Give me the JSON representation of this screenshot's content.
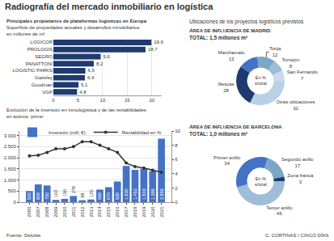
{
  "title": "Radiografía del mercado inmobiliario en logística",
  "annotations": [
    "Ubicaciones de los proyectos logísticos previstos",
    "C. CORTINAS / CINCO DÍAS"
  ],
  "chart_data": [
    {
      "type": "bar",
      "orientation": "horizontal",
      "title": "Principales propietarios de plataformas logísticas en Europa",
      "subtitle": "Superficie de propiedades actuales y desarrollos inmobiliarios\nen millones de m²",
      "categories": [
        "LOGICOR",
        "PROLOGIS",
        "SEGRO",
        "PANATTONI",
        "LOGISTIC PARKS",
        "Gazeley",
        "Goodman",
        "VGP"
      ],
      "values": [
        19.9,
        18.7,
        9.6,
        8.2,
        6.5,
        6.4,
        5.1,
        4.8
      ],
      "value_labels": [
        "19,9",
        "18,7",
        "9,6",
        "8,2",
        "6,5",
        "6,4",
        "5,1",
        "4,8"
      ],
      "data_labels": true,
      "color": "#1e3a6e",
      "xlim": [
        0,
        22
      ],
      "xticks": [
        0,
        5,
        10,
        15,
        20
      ],
      "grid": true
    },
    {
      "type": "bar",
      "title": "Evolución de la inversión en inmologística y de las rentabilidades\nen activos ‘prime’",
      "categories": [
        "2006",
        "2007",
        "2008",
        "2009",
        "2010",
        "2011",
        "2012",
        "2013",
        "2014",
        "2015",
        "2016",
        "2017",
        "2018",
        "2019",
        "2020",
        "2021"
      ],
      "series": [
        {
          "name": "Inversión (mill. €)",
          "type": "bar",
          "color": "#4472c4",
          "values": [
            500,
            800,
            750,
            103,
            150,
            279,
            88,
            120,
            566,
            674,
            930,
            1630,
            1452,
            1503,
            1395,
            2855
          ],
          "value_labels": [
            "500",
            "800",
            "750",
            "103",
            "150",
            "279",
            "88",
            "120",
            "566",
            "674",
            "930",
            "1.630",
            "1.452",
            "1.503",
            "1.395",
            "2.855"
          ],
          "data_labels": true
        },
        {
          "name": "Rentabilidad en %",
          "type": "line",
          "color": "#333333",
          "marker": "circle",
          "axis": "y2",
          "values": [
            6.5,
            6.6,
            7.0,
            7.5,
            7.5,
            7.8,
            8.5,
            8.5,
            8.0,
            7.5,
            7.0,
            5.5,
            5.0,
            4.8,
            4.5,
            4.2
          ]
        }
      ],
      "ylim": [
        0,
        3200
      ],
      "yticks": [
        0,
        500,
        {
          "value": 1000,
          "label": "1.000"
        },
        {
          "value": 1500,
          "label": "1.500"
        },
        {
          "value": 2000,
          "label": "2.000"
        },
        {
          "value": 2500,
          "label": "2.500"
        },
        {
          "value": 3000,
          "label": "3.000"
        }
      ],
      "y2lim": [
        0,
        10
      ],
      "y2ticks": [
        0,
        2,
        4,
        6,
        8,
        10
      ],
      "grid": true,
      "legend": "top",
      "annotations": [
        "Fuente: Deloitte"
      ]
    },
    {
      "type": "pie",
      "title": "ÁREA DE INFLUENCIA DE MADRID",
      "subtitle": "TOTAL: 1,5 millones m²",
      "categories": [
        "Otras ubicaciones",
        "Illescas",
        "Marchamalo",
        "Torija",
        "Torrejón",
        "San Fernando"
      ],
      "values": [
        32,
        28,
        13,
        12,
        8,
        7
      ],
      "colors": [
        "#b8d0e8",
        "#1e3a6e",
        "#4472c4",
        "#7ba7c7",
        "#9dbdd8",
        "#ccdaec"
      ],
      "data_labels": true,
      "annotations": [
        "En %\ns/total"
      ]
    },
    {
      "type": "pie",
      "title": "ÁREA DE INFLUENCIA DE BARCELONA",
      "subtitle": "TOTAL: 1,0 millones m²",
      "categories": [
        "Tercer anillo",
        "Primer anillo",
        "Segundo anillo",
        "Zona franca"
      ],
      "values": [
        46,
        34,
        17,
        3
      ],
      "colors": [
        "#9dbdd8",
        "#4472c4",
        "#7ba7c7",
        "#1e3a6e"
      ],
      "data_labels": true,
      "annotations": [
        "En %\ns/total"
      ]
    }
  ]
}
